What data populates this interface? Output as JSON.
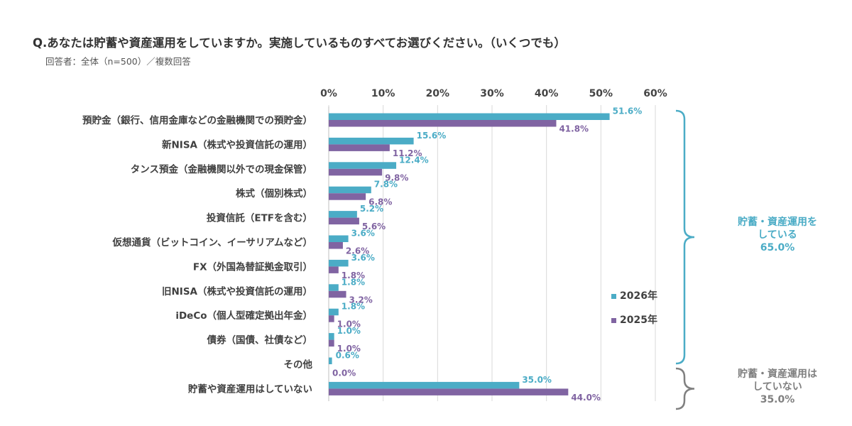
{
  "title": "Q.あなたは貯蓄や資産運用をしていますか。実施しているものすべてお選びください。（いくつでも）",
  "subtitle": "回答者：全体（n=500）／複数回答",
  "colors": {
    "s2026": "#4BACC6",
    "s2025": "#8064A2",
    "grid": "#D9D9D9",
    "text": "#404040",
    "bracket_doing": "#4BACC6",
    "bracket_not": "#808080"
  },
  "chart_data": {
    "type": "bar",
    "orientation": "horizontal",
    "title": "Q.あなたは貯蓄や資産運用をしていますか。実施しているものすべてお選びください。（いくつでも）",
    "xlabel": "",
    "ylabel": "",
    "xlim": [
      0,
      60
    ],
    "ticks": [
      0,
      10,
      20,
      30,
      40,
      50,
      60
    ],
    "tick_labels": [
      "0%",
      "10%",
      "20%",
      "30%",
      "40%",
      "50%",
      "60%"
    ],
    "categories": [
      "預貯金（銀行、信用金庫などの金融機関での預貯金）",
      "新NISA（株式や投資信託の運用）",
      "タンス預金（金融機関以外での現金保管）",
      "株式（個別株式）",
      "投資信託（ETFを含む）",
      "仮想通貨（ビットコイン、イーサリアムなど）",
      "FX（外国為替証拠金取引）",
      "旧NISA（株式や投資信託の運用）",
      "iDeCo（個人型確定拠出年金）",
      "債券（国債、社債など）",
      "その他",
      "貯蓄や資産運用はしていない"
    ],
    "series": [
      {
        "name": "2026年",
        "values": [
          51.6,
          15.6,
          12.4,
          7.8,
          5.2,
          3.6,
          3.6,
          1.8,
          1.8,
          1.0,
          0.6,
          35.0
        ],
        "labels": [
          "51.6%",
          "15.6%",
          "12.4%",
          "7.8%",
          "5.2%",
          "3.6%",
          "3.6%",
          "1.8%",
          "1.8%",
          "1.0%",
          "0.6%",
          "35.0%"
        ]
      },
      {
        "name": "2025年",
        "values": [
          41.8,
          11.2,
          9.8,
          6.8,
          5.6,
          2.6,
          1.8,
          3.2,
          1.0,
          1.0,
          0.0,
          44.0
        ],
        "labels": [
          "41.8%",
          "11.2%",
          "9.8%",
          "6.8%",
          "5.6%",
          "2.6%",
          "1.8%",
          "3.2%",
          "1.0%",
          "1.0%",
          "0.0%",
          "44.0%"
        ]
      }
    ],
    "legend": {
      "position": "right",
      "items": [
        "2026年",
        "2025年"
      ]
    },
    "annotations": [
      {
        "text_line1": "貯蓄・資産運用を",
        "text_line2": "している",
        "value": "65.0%",
        "spans_categories": [
          0,
          10
        ]
      },
      {
        "text_line1": "貯蓄・資産運用は",
        "text_line2": "していない",
        "value": "35.0%",
        "spans_categories": [
          11,
          11
        ]
      }
    ]
  }
}
